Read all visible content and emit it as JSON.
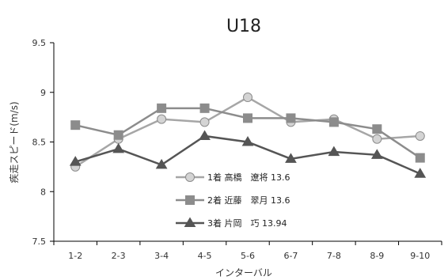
{
  "chart_data": {
    "type": "line",
    "title": "U18",
    "xlabel": "インターバル",
    "ylabel": "疾走スピード(m/s)",
    "categories": [
      "1-2",
      "2-3",
      "3-4",
      "4-5",
      "5-6",
      "6-7",
      "7-8",
      "8-9",
      "9-10"
    ],
    "ylim": [
      7.5,
      9.5
    ],
    "yticks": [
      "9.5",
      "9",
      "8.5",
      "8",
      "7.5"
    ],
    "grid": false,
    "legend_position": "center",
    "series": [
      {
        "name": "1着 高橋　遼将 13.6",
        "marker": "circle",
        "line_color": "#a6a6a6",
        "marker_fill": "#d4d4d4",
        "marker_stroke": "#8c8c8c",
        "values": [
          8.25,
          8.53,
          8.73,
          8.7,
          8.95,
          8.7,
          8.73,
          8.53,
          8.56
        ]
      },
      {
        "name": "2着 近藤　翠月 13.6",
        "marker": "square",
        "line_color": "#8c8c8c",
        "marker_fill": "#8c8c8c",
        "marker_stroke": "#8c8c8c",
        "values": [
          8.67,
          8.57,
          8.84,
          8.84,
          8.74,
          8.74,
          8.7,
          8.63,
          8.34
        ]
      },
      {
        "name": "3着 片岡　巧 13.94",
        "marker": "triangle",
        "line_color": "#555555",
        "marker_fill": "#555555",
        "marker_stroke": "#555555",
        "values": [
          8.3,
          8.43,
          8.27,
          8.56,
          8.5,
          8.33,
          8.4,
          8.37,
          8.18
        ]
      }
    ]
  }
}
